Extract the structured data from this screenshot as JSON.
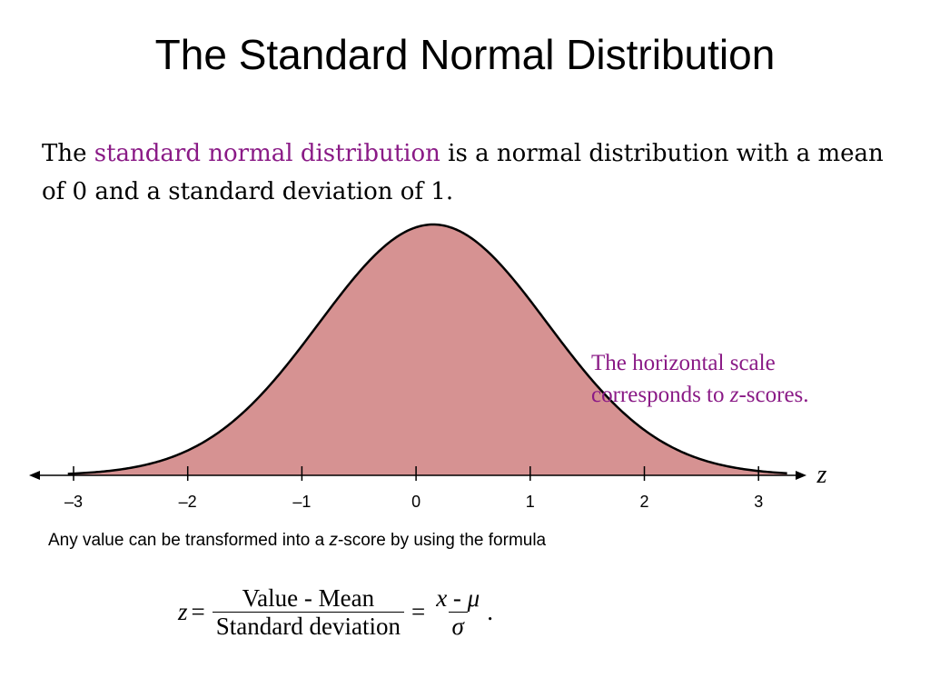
{
  "slide": {
    "title": "The Standard Normal Distribution",
    "intro": {
      "prefix": "The ",
      "term": "standard normal distribution",
      "suffix": " is a normal distribution with a mean of 0 and a standard deviation of 1."
    },
    "note": {
      "line1": "The horizontal scale",
      "line2_prefix": "corresponds to ",
      "line2_var": "z",
      "line2_suffix": "-scores."
    },
    "formula_intro": {
      "prefix": "Any value can be transformed into a ",
      "var": "z",
      "suffix": "-score by using the formula"
    },
    "formula": {
      "lhs": "z",
      "equals": "=",
      "numerator1": "Value - Mean",
      "denominator1": "Standard deviation",
      "equals2": "=",
      "numerator2_x": "x",
      "numerator2_op": " - ",
      "numerator2_mu": "μ",
      "denominator2": "σ",
      "period": "."
    }
  },
  "chart_data": {
    "type": "area",
    "title": "",
    "xlabel": "z",
    "ylabel": "",
    "xlim": [
      -3.3,
      3.4
    ],
    "ticks": [
      -3,
      -2,
      -1,
      0,
      1,
      2,
      3
    ],
    "tick_labels": [
      "–3",
      "–2",
      "–1",
      "0",
      "1",
      "2",
      "3"
    ],
    "series": [
      {
        "mean": 0,
        "sd": 1,
        "peak_offset": 0.15
      }
    ],
    "colors": {
      "fill": "#d69292",
      "stroke": "#000000"
    },
    "grid": false
  }
}
